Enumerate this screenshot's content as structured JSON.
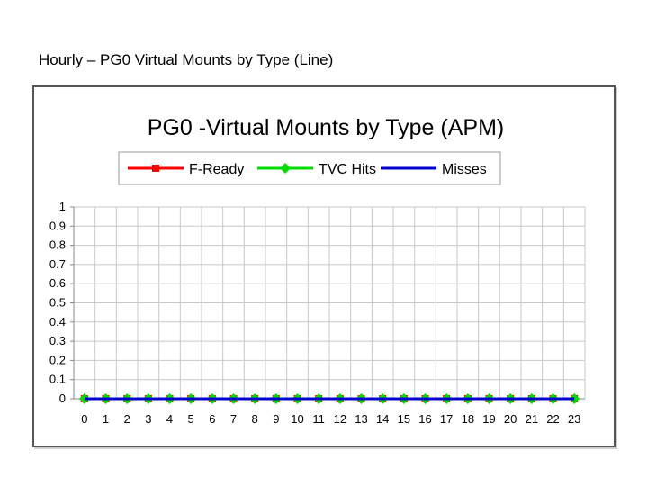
{
  "slide": {
    "title": "Hourly – PG0 Virtual Mounts by Type (Line)"
  },
  "colors": {
    "f_ready": "#ff0000",
    "tvc_hits": "#00dd00",
    "misses": "#0000cc",
    "grid": "#c8c8c8",
    "axis": "#888888"
  },
  "chart_data": {
    "type": "line",
    "title": "PG0 -Virtual Mounts by Type (APM)",
    "xlabel": "",
    "ylabel": "",
    "ylim": [
      0,
      1
    ],
    "yticks": [
      "0",
      "0.1",
      "0.2",
      "0.3",
      "0.4",
      "0.5",
      "0.6",
      "0.7",
      "0.8",
      "0.9",
      "1"
    ],
    "categories": [
      "0",
      "1",
      "2",
      "3",
      "4",
      "5",
      "6",
      "7",
      "8",
      "9",
      "10",
      "11",
      "12",
      "13",
      "14",
      "15",
      "16",
      "17",
      "18",
      "19",
      "20",
      "21",
      "22",
      "23"
    ],
    "grid": true,
    "legend_position": "top",
    "series": [
      {
        "name": "F-Ready",
        "marker": "square",
        "values": [
          0,
          0,
          0,
          0,
          0,
          0,
          0,
          0,
          0,
          0,
          0,
          0,
          0,
          0,
          0,
          0,
          0,
          0,
          0,
          0,
          0,
          0,
          0,
          0
        ]
      },
      {
        "name": "TVC Hits",
        "marker": "diamond",
        "values": [
          0,
          0,
          0,
          0,
          0,
          0,
          0,
          0,
          0,
          0,
          0,
          0,
          0,
          0,
          0,
          0,
          0,
          0,
          0,
          0,
          0,
          0,
          0,
          0
        ]
      },
      {
        "name": "Misses",
        "marker": "none",
        "values": [
          0,
          0,
          0,
          0,
          0,
          0,
          0,
          0,
          0,
          0,
          0,
          0,
          0,
          0,
          0,
          0,
          0,
          0,
          0,
          0,
          0,
          0,
          0,
          0
        ]
      }
    ]
  }
}
